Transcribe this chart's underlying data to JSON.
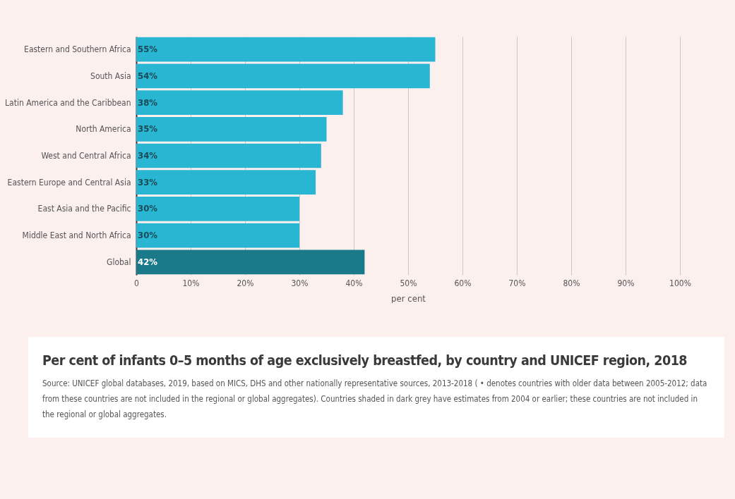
{
  "chart_data": {
    "type": "bar",
    "orientation": "horizontal",
    "title": "Per cent of infants 0–5 months of age exclusively breastfed, by country and UNICEF region, 2018",
    "xlabel": "per cent",
    "categories": [
      "Eastern and Southern Africa",
      "South Asia",
      "Latin America and the Caribbean",
      "North America",
      "West and Central Africa",
      "Eastern Europe and Central Asia",
      "East Asia and the Pacific",
      "Middle East and North Africa",
      "Global"
    ],
    "values": [
      55,
      54,
      38,
      35,
      34,
      33,
      30,
      30,
      42
    ],
    "value_labels": [
      "55%",
      "54%",
      "38%",
      "35%",
      "34%",
      "33%",
      "30%",
      "30%",
      "42%"
    ],
    "colors": [
      "#29b6d3",
      "#29b6d3",
      "#29b6d3",
      "#29b6d3",
      "#29b6d3",
      "#29b6d3",
      "#29b6d3",
      "#29b6d3",
      "#1b7a89"
    ],
    "xlim": [
      0,
      100
    ],
    "xticks": [
      0,
      {
        "value": 10,
        "label": "10%"
      },
      {
        "value": 20,
        "label": "20%"
      },
      {
        "value": 30,
        "label": "30%"
      },
      {
        "value": 40,
        "label": "40%"
      },
      {
        "value": 50,
        "label": "50%"
      },
      {
        "value": 60,
        "label": "60%"
      },
      {
        "value": 70,
        "label": "70%"
      },
      {
        "value": 80,
        "label": "80%"
      },
      {
        "value": 90,
        "label": "90%"
      },
      {
        "value": 100,
        "label": "100%"
      }
    ],
    "grid": "x",
    "annotations": [
      "Source: UNICEF global databases, 2019, based on MICS, DHS and other nationally representative sources, 2013-2018 ( • denotes countries with older data between 2005-2012; data from these countries are not included in the regional or global aggregates). Countries shaded in dark grey have estimates from 2004 or earlier; these countries are not included in the regional or global aggregates."
    ]
  }
}
